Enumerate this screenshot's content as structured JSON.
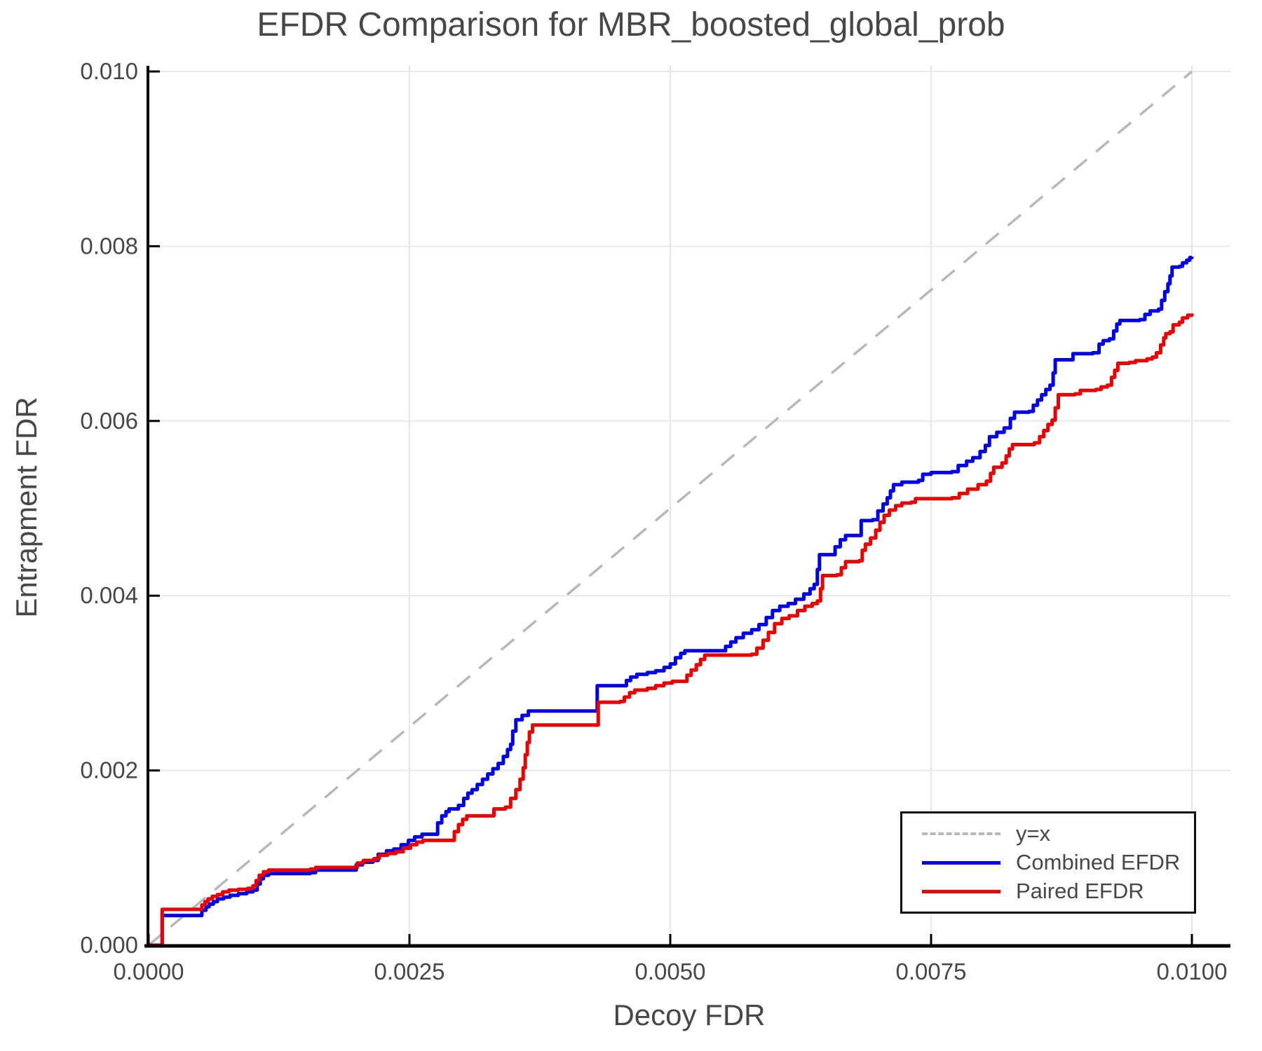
{
  "chart_data": {
    "type": "line",
    "title": "EFDR Comparison for MBR_boosted_global_prob",
    "xlabel": "Decoy FDR",
    "ylabel": "Entrapment FDR",
    "xlim": [
      0.0,
      0.0104
    ],
    "ylim": [
      0.0,
      0.01
    ],
    "grid": true,
    "legend_position": "bottom-right",
    "xticks": {
      "values": [
        0.0,
        0.0025,
        0.005,
        0.0075,
        0.01
      ],
      "labels": [
        "0.0000",
        "0.0025",
        "0.0050",
        "0.0075",
        "0.0100"
      ]
    },
    "yticks": {
      "values": [
        0.0,
        0.002,
        0.004,
        0.006,
        0.008,
        0.01
      ],
      "labels": [
        "0.000",
        "0.002",
        "0.004",
        "0.006",
        "0.008",
        "0.010"
      ]
    },
    "diagonal": {
      "label": "y=x",
      "style": "dashed",
      "color": "#b8b8b8",
      "from": [
        0.0,
        0.0
      ],
      "to": [
        0.0104,
        0.0104
      ]
    },
    "series": [
      {
        "name": "Combined EFDR",
        "color": "#0000ee",
        "step": true,
        "points": [
          [
            0.0,
            0.0
          ],
          [
            0.00013,
            0.00034
          ],
          [
            0.00048,
            0.00034
          ],
          [
            0.00051,
            0.0004
          ],
          [
            0.00055,
            0.00044
          ],
          [
            0.00058,
            0.00047
          ],
          [
            0.00062,
            0.0005
          ],
          [
            0.00066,
            0.00053
          ],
          [
            0.00072,
            0.00055
          ],
          [
            0.00078,
            0.00057
          ],
          [
            0.00086,
            0.00059
          ],
          [
            0.00094,
            0.00061
          ],
          [
            0.001,
            0.00063
          ],
          [
            0.00104,
            0.0007
          ],
          [
            0.00107,
            0.00076
          ],
          [
            0.0011,
            0.0008
          ],
          [
            0.00115,
            0.00082
          ],
          [
            0.00155,
            0.00083
          ],
          [
            0.0016,
            0.00086
          ],
          [
            0.00196,
            0.00086
          ],
          [
            0.00199,
            0.00092
          ],
          [
            0.00205,
            0.00095
          ],
          [
            0.00215,
            0.00097
          ],
          [
            0.0022,
            0.00104
          ],
          [
            0.00228,
            0.00108
          ],
          [
            0.00235,
            0.0011
          ],
          [
            0.00242,
            0.00115
          ],
          [
            0.00249,
            0.0012
          ],
          [
            0.00255,
            0.00124
          ],
          [
            0.00262,
            0.00127
          ],
          [
            0.00275,
            0.00127
          ],
          [
            0.00277,
            0.0014
          ],
          [
            0.00281,
            0.00148
          ],
          [
            0.00285,
            0.00153
          ],
          [
            0.00288,
            0.00156
          ],
          [
            0.00297,
            0.0016
          ],
          [
            0.00302,
            0.00168
          ],
          [
            0.00306,
            0.00174
          ],
          [
            0.0031,
            0.00178
          ],
          [
            0.00315,
            0.00184
          ],
          [
            0.0032,
            0.0019
          ],
          [
            0.00325,
            0.00196
          ],
          [
            0.0033,
            0.00202
          ],
          [
            0.00335,
            0.00208
          ],
          [
            0.0034,
            0.00216
          ],
          [
            0.00344,
            0.00224
          ],
          [
            0.00347,
            0.0023
          ],
          [
            0.00349,
            0.00245
          ],
          [
            0.00352,
            0.00258
          ],
          [
            0.00358,
            0.00263
          ],
          [
            0.00364,
            0.00268
          ],
          [
            0.00422,
            0.00268
          ],
          [
            0.0043,
            0.00297
          ],
          [
            0.00454,
            0.00297
          ],
          [
            0.00458,
            0.00303
          ],
          [
            0.00462,
            0.00307
          ],
          [
            0.00468,
            0.0031
          ],
          [
            0.00478,
            0.00312
          ],
          [
            0.00486,
            0.00314
          ],
          [
            0.00494,
            0.00318
          ],
          [
            0.005,
            0.00322
          ],
          [
            0.00505,
            0.00329
          ],
          [
            0.0051,
            0.00334
          ],
          [
            0.00514,
            0.00337
          ],
          [
            0.00548,
            0.00337
          ],
          [
            0.00553,
            0.00342
          ],
          [
            0.00558,
            0.00347
          ],
          [
            0.00563,
            0.00352
          ],
          [
            0.0057,
            0.00357
          ],
          [
            0.00578,
            0.00361
          ],
          [
            0.00585,
            0.00367
          ],
          [
            0.00592,
            0.00375
          ],
          [
            0.00598,
            0.00383
          ],
          [
            0.00605,
            0.00388
          ],
          [
            0.00613,
            0.00391
          ],
          [
            0.0062,
            0.00396
          ],
          [
            0.00628,
            0.00402
          ],
          [
            0.00634,
            0.00408
          ],
          [
            0.00638,
            0.00413
          ],
          [
            0.00641,
            0.0043
          ],
          [
            0.00643,
            0.00447
          ],
          [
            0.00654,
            0.00447
          ],
          [
            0.00658,
            0.00456
          ],
          [
            0.00663,
            0.00464
          ],
          [
            0.00668,
            0.00469
          ],
          [
            0.0068,
            0.00469
          ],
          [
            0.00683,
            0.00486
          ],
          [
            0.00694,
            0.00487
          ],
          [
            0.00699,
            0.00497
          ],
          [
            0.00704,
            0.00505
          ],
          [
            0.00708,
            0.00512
          ],
          [
            0.00711,
            0.0052
          ],
          [
            0.00714,
            0.00527
          ],
          [
            0.00722,
            0.0053
          ],
          [
            0.00738,
            0.00532
          ],
          [
            0.00742,
            0.00539
          ],
          [
            0.0075,
            0.00541
          ],
          [
            0.0077,
            0.00542
          ],
          [
            0.00776,
            0.00549
          ],
          [
            0.00784,
            0.00554
          ],
          [
            0.0079,
            0.00558
          ],
          [
            0.00797,
            0.00565
          ],
          [
            0.00802,
            0.00572
          ],
          [
            0.00806,
            0.00582
          ],
          [
            0.00813,
            0.00587
          ],
          [
            0.0082,
            0.00592
          ],
          [
            0.00826,
            0.00603
          ],
          [
            0.0083,
            0.0061
          ],
          [
            0.00844,
            0.00611
          ],
          [
            0.00848,
            0.00618
          ],
          [
            0.00852,
            0.00624
          ],
          [
            0.00856,
            0.0063
          ],
          [
            0.0086,
            0.00636
          ],
          [
            0.00864,
            0.00641
          ],
          [
            0.00867,
            0.00655
          ],
          [
            0.00869,
            0.0067
          ],
          [
            0.00881,
            0.0067
          ],
          [
            0.00886,
            0.00677
          ],
          [
            0.00905,
            0.00678
          ],
          [
            0.00911,
            0.00688
          ],
          [
            0.00915,
            0.00692
          ],
          [
            0.00921,
            0.00694
          ],
          [
            0.00925,
            0.00703
          ],
          [
            0.00928,
            0.00711
          ],
          [
            0.00931,
            0.00715
          ],
          [
            0.0095,
            0.00716
          ],
          [
            0.00955,
            0.00722
          ],
          [
            0.0096,
            0.00726
          ],
          [
            0.00968,
            0.00728
          ],
          [
            0.00971,
            0.00738
          ],
          [
            0.00974,
            0.00748
          ],
          [
            0.00977,
            0.00757
          ],
          [
            0.00979,
            0.00766
          ],
          [
            0.00981,
            0.00776
          ],
          [
            0.00988,
            0.00777
          ],
          [
            0.00991,
            0.00781
          ],
          [
            0.00995,
            0.00784
          ],
          [
            0.00998,
            0.00787
          ],
          [
            0.01,
            0.00788
          ]
        ]
      },
      {
        "name": "Paired EFDR",
        "color": "#ee0000",
        "step": true,
        "points": [
          [
            0.0,
            0.0
          ],
          [
            0.00013,
            0.00041
          ],
          [
            0.00048,
            0.00041
          ],
          [
            0.00051,
            0.00046
          ],
          [
            0.00054,
            0.0005
          ],
          [
            0.00057,
            0.00053
          ],
          [
            0.00061,
            0.00056
          ],
          [
            0.00066,
            0.00058
          ],
          [
            0.00071,
            0.00061
          ],
          [
            0.00077,
            0.00063
          ],
          [
            0.00086,
            0.00064
          ],
          [
            0.00095,
            0.00065
          ],
          [
            0.001,
            0.00068
          ],
          [
            0.00103,
            0.00074
          ],
          [
            0.00106,
            0.0008
          ],
          [
            0.0011,
            0.00084
          ],
          [
            0.00115,
            0.00086
          ],
          [
            0.00155,
            0.00087
          ],
          [
            0.0016,
            0.00089
          ],
          [
            0.00196,
            0.00089
          ],
          [
            0.002,
            0.00094
          ],
          [
            0.00206,
            0.00097
          ],
          [
            0.00216,
            0.00099
          ],
          [
            0.00221,
            0.00103
          ],
          [
            0.00229,
            0.00105
          ],
          [
            0.00237,
            0.00107
          ],
          [
            0.00244,
            0.00111
          ],
          [
            0.00251,
            0.00115
          ],
          [
            0.00257,
            0.00118
          ],
          [
            0.00263,
            0.0012
          ],
          [
            0.00289,
            0.0012
          ],
          [
            0.00293,
            0.0013
          ],
          [
            0.00297,
            0.00138
          ],
          [
            0.00301,
            0.00144
          ],
          [
            0.00305,
            0.00148
          ],
          [
            0.00328,
            0.00148
          ],
          [
            0.00331,
            0.00156
          ],
          [
            0.00342,
            0.00158
          ],
          [
            0.00347,
            0.00168
          ],
          [
            0.00352,
            0.00178
          ],
          [
            0.00356,
            0.0019
          ],
          [
            0.00359,
            0.00203
          ],
          [
            0.00361,
            0.00218
          ],
          [
            0.00363,
            0.00232
          ],
          [
            0.00365,
            0.00244
          ],
          [
            0.00368,
            0.00252
          ],
          [
            0.00428,
            0.00252
          ],
          [
            0.00431,
            0.00278
          ],
          [
            0.00452,
            0.00279
          ],
          [
            0.00456,
            0.00284
          ],
          [
            0.00461,
            0.00289
          ],
          [
            0.00466,
            0.00292
          ],
          [
            0.00478,
            0.00294
          ],
          [
            0.00486,
            0.00297
          ],
          [
            0.00494,
            0.003
          ],
          [
            0.00502,
            0.00302
          ],
          [
            0.00513,
            0.00302
          ],
          [
            0.00516,
            0.00309
          ],
          [
            0.0052,
            0.00315
          ],
          [
            0.00525,
            0.00321
          ],
          [
            0.00529,
            0.00327
          ],
          [
            0.00533,
            0.00332
          ],
          [
            0.00578,
            0.00333
          ],
          [
            0.00583,
            0.0034
          ],
          [
            0.00589,
            0.00349
          ],
          [
            0.00594,
            0.00358
          ],
          [
            0.006,
            0.00368
          ],
          [
            0.00607,
            0.00374
          ],
          [
            0.00614,
            0.00377
          ],
          [
            0.00622,
            0.00383
          ],
          [
            0.00629,
            0.00388
          ],
          [
            0.00636,
            0.00391
          ],
          [
            0.00641,
            0.00394
          ],
          [
            0.00644,
            0.00408
          ],
          [
            0.00646,
            0.00423
          ],
          [
            0.0066,
            0.00424
          ],
          [
            0.00664,
            0.00432
          ],
          [
            0.00668,
            0.00439
          ],
          [
            0.00681,
            0.0044
          ],
          [
            0.00684,
            0.00452
          ],
          [
            0.00687,
            0.00459
          ],
          [
            0.00692,
            0.00466
          ],
          [
            0.00697,
            0.00475
          ],
          [
            0.00701,
            0.00484
          ],
          [
            0.00705,
            0.00492
          ],
          [
            0.0071,
            0.00498
          ],
          [
            0.00716,
            0.00503
          ],
          [
            0.00722,
            0.00506
          ],
          [
            0.00731,
            0.00507
          ],
          [
            0.00735,
            0.00511
          ],
          [
            0.0077,
            0.00512
          ],
          [
            0.00777,
            0.00517
          ],
          [
            0.00785,
            0.00522
          ],
          [
            0.00795,
            0.00527
          ],
          [
            0.00803,
            0.00531
          ],
          [
            0.00807,
            0.0054
          ],
          [
            0.0081,
            0.00547
          ],
          [
            0.00818,
            0.00552
          ],
          [
            0.00822,
            0.0056
          ],
          [
            0.00825,
            0.00568
          ],
          [
            0.00828,
            0.00573
          ],
          [
            0.00849,
            0.00575
          ],
          [
            0.00854,
            0.00582
          ],
          [
            0.00858,
            0.00589
          ],
          [
            0.00862,
            0.00596
          ],
          [
            0.00866,
            0.00601
          ],
          [
            0.00869,
            0.00615
          ],
          [
            0.00872,
            0.0063
          ],
          [
            0.00888,
            0.00631
          ],
          [
            0.00893,
            0.00635
          ],
          [
            0.00908,
            0.00636
          ],
          [
            0.00913,
            0.00639
          ],
          [
            0.00919,
            0.00641
          ],
          [
            0.00923,
            0.0065
          ],
          [
            0.00926,
            0.00658
          ],
          [
            0.00929,
            0.00666
          ],
          [
            0.0094,
            0.00667
          ],
          [
            0.00946,
            0.00669
          ],
          [
            0.00957,
            0.00671
          ],
          [
            0.00962,
            0.00673
          ],
          [
            0.00966,
            0.00678
          ],
          [
            0.0097,
            0.00687
          ],
          [
            0.00973,
            0.00695
          ],
          [
            0.00975,
            0.007
          ],
          [
            0.00979,
            0.00702
          ],
          [
            0.00982,
            0.0071
          ],
          [
            0.00988,
            0.00713
          ],
          [
            0.00991,
            0.00718
          ],
          [
            0.00996,
            0.00721
          ],
          [
            0.01,
            0.00723
          ]
        ]
      }
    ]
  }
}
